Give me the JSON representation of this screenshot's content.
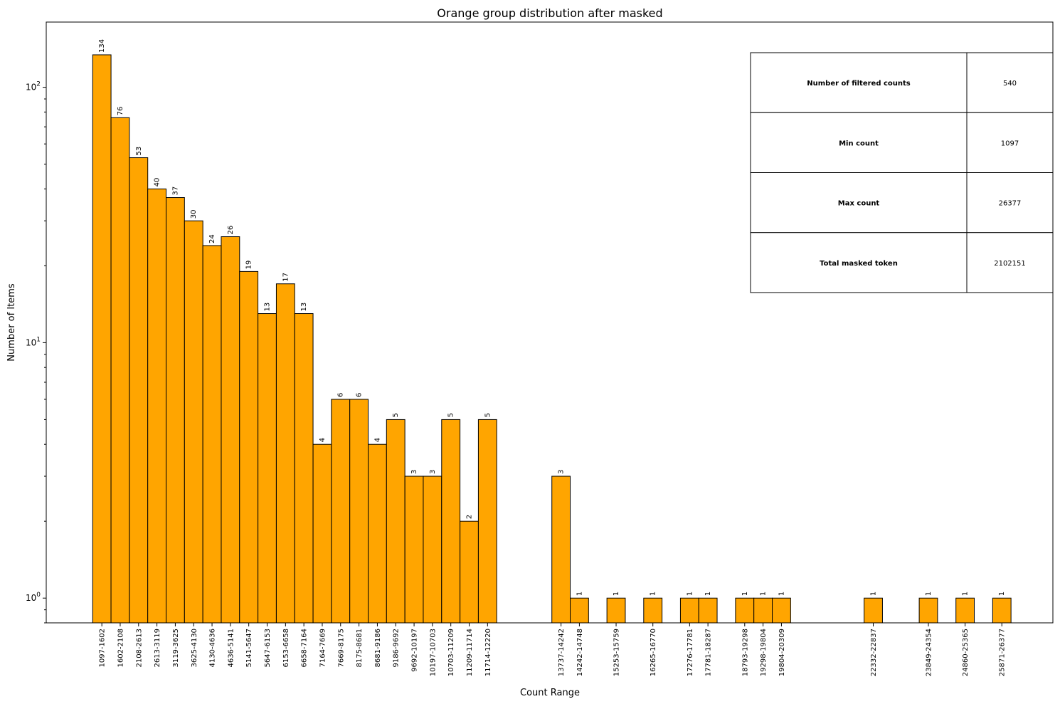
{
  "chart_data": {
    "type": "bar",
    "title": "Orange group distribution after masked",
    "xlabel": "Count Range",
    "ylabel": "Number of Items",
    "yscale": "log",
    "ylim": [
      0.8,
      180
    ],
    "yticks": [
      {
        "value": 1,
        "base": "10",
        "exp": "0"
      },
      {
        "value": 10,
        "base": "10",
        "exp": "1"
      },
      {
        "value": 100,
        "base": "10",
        "exp": "2"
      }
    ],
    "bar_color": "#ffa500",
    "bin_width": 505.5,
    "bins": [
      {
        "label": "1097-1602",
        "start": 1097,
        "value": 134
      },
      {
        "label": "1602-2108",
        "start": 1602,
        "value": 76
      },
      {
        "label": "2108-2613",
        "start": 2108,
        "value": 53
      },
      {
        "label": "2613-3119",
        "start": 2613,
        "value": 40
      },
      {
        "label": "3119-3625",
        "start": 3119,
        "value": 37
      },
      {
        "label": "3625-4130",
        "start": 3625,
        "value": 30
      },
      {
        "label": "4130-4636",
        "start": 4130,
        "value": 24
      },
      {
        "label": "4636-5141",
        "start": 4636,
        "value": 26
      },
      {
        "label": "5141-5647",
        "start": 5141,
        "value": 19
      },
      {
        "label": "5647-6153",
        "start": 5647,
        "value": 13
      },
      {
        "label": "6153-6658",
        "start": 6153,
        "value": 17
      },
      {
        "label": "6658-7164",
        "start": 6658,
        "value": 13
      },
      {
        "label": "7164-7669",
        "start": 7164,
        "value": 4
      },
      {
        "label": "7669-8175",
        "start": 7669,
        "value": 6
      },
      {
        "label": "8175-8681",
        "start": 8175,
        "value": 6
      },
      {
        "label": "8681-9186",
        "start": 8681,
        "value": 4
      },
      {
        "label": "9186-9692",
        "start": 9186,
        "value": 5
      },
      {
        "label": "9692-10197",
        "start": 9692,
        "value": 3
      },
      {
        "label": "10197-10703",
        "start": 10197,
        "value": 3
      },
      {
        "label": "10703-11209",
        "start": 10703,
        "value": 5
      },
      {
        "label": "11209-11714",
        "start": 11209,
        "value": 2
      },
      {
        "label": "11714-12220",
        "start": 11714,
        "value": 5
      },
      {
        "label": "13737-14242",
        "start": 13737,
        "value": 3
      },
      {
        "label": "14242-14748",
        "start": 14242,
        "value": 1
      },
      {
        "label": "15253-15759",
        "start": 15253,
        "value": 1
      },
      {
        "label": "16265-16770",
        "start": 16265,
        "value": 1
      },
      {
        "label": "17276-17781",
        "start": 17276,
        "value": 1
      },
      {
        "label": "17781-18287",
        "start": 17781,
        "value": 1
      },
      {
        "label": "18793-19298",
        "start": 18793,
        "value": 1
      },
      {
        "label": "19298-19804",
        "start": 19298,
        "value": 1
      },
      {
        "label": "19804-20309",
        "start": 19804,
        "value": 1
      },
      {
        "label": "22332-22837",
        "start": 22332,
        "value": 1
      },
      {
        "label": "23849-24354",
        "start": 23849,
        "value": 1
      },
      {
        "label": "24860-25365",
        "start": 24860,
        "value": 1
      },
      {
        "label": "25871-26377",
        "start": 25871,
        "value": 1
      }
    ],
    "summary_table": [
      {
        "key": "Number of filtered counts",
        "value": "540"
      },
      {
        "key": "Min count",
        "value": "1097"
      },
      {
        "key": "Max count",
        "value": "26377"
      },
      {
        "key": "Total masked token",
        "value": "2102151"
      }
    ]
  }
}
